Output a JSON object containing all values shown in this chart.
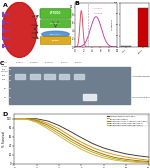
{
  "fig_width": 1.5,
  "fig_height": 1.68,
  "dpi": 100,
  "background": "#ffffff",
  "panel_A": {
    "label": "A"
  },
  "panel_B_bar": {
    "categories": [
      "IgG1",
      "Biotin"
    ],
    "values": [
      3,
      88
    ],
    "bar_colors": [
      "#aaaaaa",
      "#cc0000"
    ],
    "ylim": [
      0,
      100
    ],
    "ylabel": "% Positive"
  },
  "panel_D": {
    "label": "D",
    "x": [
      0,
      1,
      2,
      3,
      4,
      5,
      6,
      7,
      8,
      9,
      10,
      11,
      12
    ],
    "lines": [
      {
        "y": [
          100,
          100,
          100,
          95,
          85,
          72,
          58,
          45,
          35,
          28,
          22,
          18,
          15
        ],
        "color": "#333333",
        "label": "C57BL/6 control tumor (PBS)"
      },
      {
        "y": [
          100,
          100,
          98,
          90,
          78,
          62,
          48,
          36,
          27,
          20,
          15,
          11,
          8
        ],
        "color": "#cc9900",
        "label": "Balb/PETGOb tumor"
      },
      {
        "y": [
          100,
          100,
          96,
          86,
          72,
          56,
          42,
          30,
          21,
          14,
          10,
          7,
          5
        ],
        "color": "#cc5500",
        "label": "Balb/PETGOb-GR1 + free biotin PBS(-GR1)"
      },
      {
        "y": [
          100,
          100,
          94,
          82,
          67,
          51,
          37,
          26,
          17,
          11,
          7,
          5,
          3
        ],
        "color": "#88bb00",
        "label": "Balb/PETGOb-GR1 tumor (PBS+GR1)"
      },
      {
        "y": [
          100,
          100,
          92,
          78,
          62,
          46,
          32,
          21,
          13,
          8,
          5,
          3,
          2
        ],
        "color": "#ddaa44",
        "label": "Balb/PETGOb-GR1 tumor (PBS+GR1)"
      }
    ],
    "xlabel": "Days",
    "ylabel": "% Survival",
    "ylim": [
      0,
      110
    ],
    "xlim": [
      0,
      12
    ]
  }
}
